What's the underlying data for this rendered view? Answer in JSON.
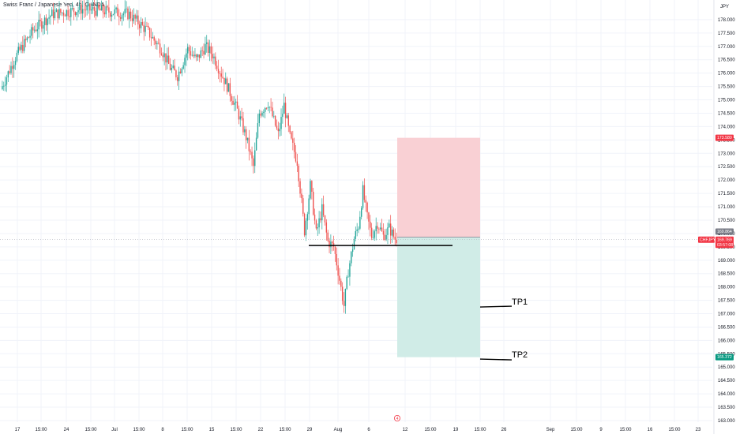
{
  "header": {
    "title": "Swiss Franc / Japanese Yen, 4h, OANDA"
  },
  "colors": {
    "up": "#26a69a",
    "down": "#ef5350",
    "stop_zone": "#f9d0d4",
    "target_zone": "#d0ece7",
    "grid": "#f0f3fa",
    "axis_text": "#131722",
    "tag_red": "#f23645",
    "tag_gray": "#787b86",
    "tag_green": "#089981",
    "tag_dark": "#131722"
  },
  "price_axis": {
    "currency_label": "JPY",
    "ticks": [
      "178.000",
      "177.500",
      "177.000",
      "176.500",
      "176.000",
      "175.500",
      "175.000",
      "174.500",
      "174.000",
      "173.500",
      "173.000",
      "172.500",
      "172.000",
      "171.500",
      "171.000",
      "170.500",
      "170.000",
      "169.500",
      "169.000",
      "168.500",
      "168.000",
      "167.500",
      "167.000",
      "166.500",
      "166.000",
      "165.500",
      "165.000",
      "164.500",
      "164.000",
      "163.500",
      "163.000"
    ]
  },
  "time_axis": {
    "ticks": [
      "17",
      "15:00",
      "24",
      "15:00",
      "Jul",
      "15:00",
      "8",
      "15:00",
      "15",
      "15:00",
      "22",
      "15:00",
      "29",
      "Aug",
      "6",
      "12",
      "15:00",
      "19",
      "15:00",
      "26",
      "Sep",
      "15:00",
      "9",
      "15:00",
      "16",
      "15:00",
      "23"
    ]
  },
  "price_tags": {
    "stop": {
      "value": "173.580"
    },
    "current": {
      "value": "169.864"
    },
    "symbol": {
      "label": "CHFJPY",
      "value": "169.769",
      "countdown": "03:57:08"
    },
    "target": {
      "value": "165.372"
    }
  },
  "annotations": {
    "tp1": {
      "label": "TP1",
      "price": 167.25
    },
    "tp2": {
      "label": "TP2",
      "price": 165.3
    },
    "support_line_price": 169.55
  },
  "event_marker": {
    "label": "4"
  },
  "chart_data": {
    "type": "candlestick",
    "title": "Swiss Franc / Japanese Yen, 4h, OANDA",
    "ylim": [
      162.9,
      178.4
    ],
    "y_unit": "JPY",
    "timeframe": "4h",
    "trend_path": [
      [
        0,
        175.4
      ],
      [
        10,
        176.6
      ],
      [
        22,
        177.6
      ],
      [
        35,
        178.2
      ],
      [
        55,
        178.4
      ],
      [
        75,
        178.3
      ],
      [
        88,
        178.2
      ],
      [
        94,
        177.9
      ],
      [
        100,
        177.6
      ],
      [
        104,
        177.3
      ],
      [
        110,
        176.9
      ],
      [
        116,
        176.2
      ],
      [
        121,
        175.9
      ],
      [
        128,
        176.9
      ],
      [
        134,
        176.5
      ],
      [
        140,
        177.0
      ],
      [
        145,
        176.7
      ],
      [
        150,
        176.1
      ],
      [
        156,
        175.4
      ],
      [
        162,
        174.6
      ],
      [
        168,
        173.6
      ],
      [
        173,
        172.5
      ],
      [
        177,
        174.5
      ],
      [
        183,
        174.9
      ],
      [
        190,
        173.7
      ],
      [
        194,
        174.8
      ],
      [
        198,
        173.6
      ],
      [
        203,
        172.7
      ],
      [
        208,
        170.1
      ],
      [
        212,
        171.8
      ],
      [
        216,
        170.0
      ],
      [
        220,
        170.9
      ],
      [
        224,
        169.7
      ],
      [
        228,
        169.5
      ],
      [
        231,
        168.6
      ],
      [
        235,
        167.3
      ],
      [
        238,
        168.6
      ],
      [
        242,
        169.8
      ],
      [
        245,
        170.3
      ],
      [
        248,
        171.6
      ],
      [
        251,
        170.6
      ],
      [
        254,
        169.9
      ],
      [
        258,
        170.4
      ],
      [
        262,
        169.9
      ],
      [
        266,
        170.2
      ],
      [
        270,
        169.8
      ]
    ],
    "stop_price": 173.58,
    "entry_price": 169.864,
    "target_price": 165.372,
    "last_price": 169.769,
    "support_price": 169.55,
    "tp_levels": [
      {
        "label": "TP1",
        "price": 167.25
      },
      {
        "label": "TP2",
        "price": 165.3
      }
    ]
  }
}
